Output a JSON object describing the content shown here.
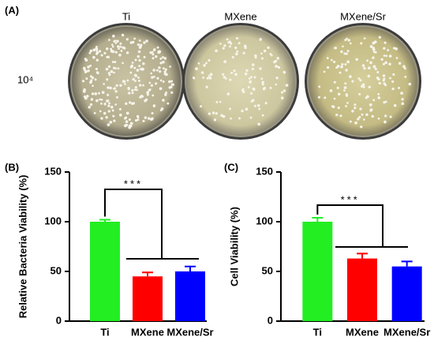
{
  "panel_a": {
    "label": "(A)",
    "plates": [
      "Ti",
      "MXene",
      "MXene/Sr"
    ],
    "row_label": "10⁴"
  },
  "chart_data": [
    {
      "type": "bar",
      "label": "(B)",
      "y_label": "Relative Bacteria Viability (%)",
      "categories": [
        "Ti",
        "MXene",
        "MXene/Sr"
      ],
      "values": [
        100,
        45,
        50
      ],
      "errors": [
        2,
        4,
        5
      ],
      "colors": [
        "#22ee22",
        "#ff0000",
        "#0000ff"
      ],
      "ylim": [
        0,
        150
      ],
      "yticks": [
        0,
        50,
        100,
        150
      ],
      "annotation": "***"
    },
    {
      "type": "bar",
      "label": "(C)",
      "y_label": "Cell Viability (%)",
      "categories": [
        "Ti",
        "MXene",
        "MXene/Sr"
      ],
      "values": [
        100,
        63,
        55
      ],
      "errors": [
        4,
        5,
        5
      ],
      "colors": [
        "#22ee22",
        "#ff0000",
        "#0000ff"
      ],
      "ylim": [
        0,
        150
      ],
      "yticks": [
        0,
        50,
        100,
        150
      ],
      "annotation": "***"
    }
  ]
}
